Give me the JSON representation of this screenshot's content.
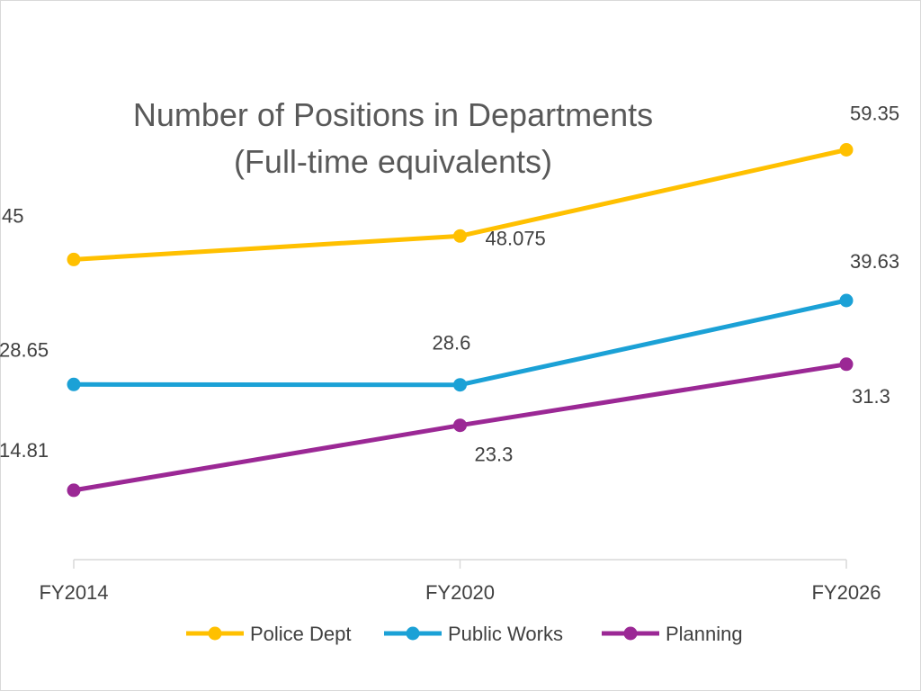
{
  "chart_data": {
    "type": "line",
    "title_lines": [
      "Number of Positions in Departments",
      "(Full-time equivalents)"
    ],
    "categories": [
      "FY2014",
      "FY2020",
      "FY2026"
    ],
    "series": [
      {
        "name": "Police Dept",
        "values": [
          45,
          48.075,
          59.35
        ],
        "labels": [
          "45",
          "48.075",
          "59.35"
        ],
        "color": "#FFC000"
      },
      {
        "name": "Public Works",
        "values": [
          28.65,
          28.6,
          39.63
        ],
        "labels": [
          "28.65",
          "28.6",
          "39.63"
        ],
        "color": "#1BA1D6"
      },
      {
        "name": "Planning",
        "values": [
          14.81,
          23.3,
          31.3
        ],
        "labels": [
          "14.81",
          "23.3",
          "31.3"
        ],
        "color": "#9B2895"
      }
    ],
    "axis_color": "#d9d9d9",
    "grid": false,
    "legend_position": "bottom"
  }
}
